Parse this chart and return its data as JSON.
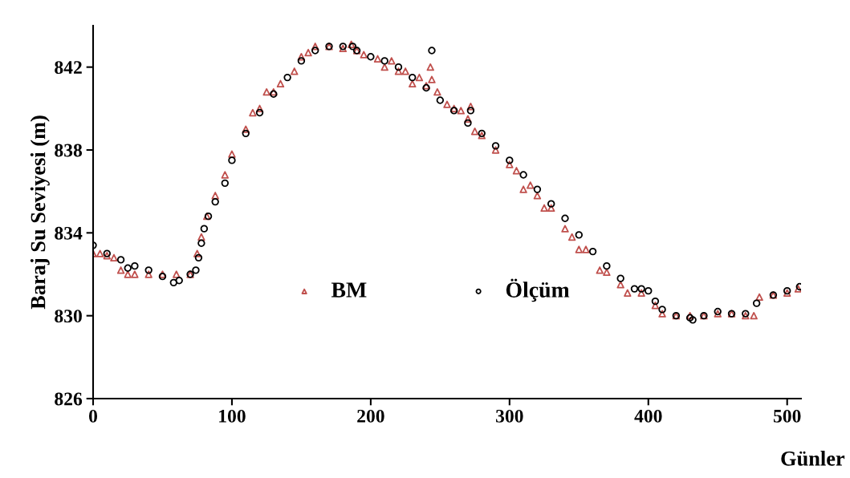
{
  "chart_data": {
    "type": "scatter",
    "xlabel": "Günler",
    "ylabel": "Baraj Su Seviyesi (m)",
    "xlim": [
      0,
      510
    ],
    "ylim": [
      826,
      844
    ],
    "xticks": [
      0,
      100,
      200,
      300,
      400,
      500
    ],
    "yticks": [
      826,
      830,
      834,
      838,
      842
    ],
    "grid": false,
    "legend": "center",
    "series": [
      {
        "name": "BM",
        "color": "#c0504d",
        "marker": "triangle",
        "x": [
          0,
          5,
          10,
          15,
          20,
          25,
          30,
          40,
          50,
          60,
          70,
          75,
          78,
          82,
          88,
          95,
          100,
          110,
          115,
          120,
          125,
          130,
          135,
          145,
          150,
          155,
          160,
          170,
          180,
          186,
          190,
          195,
          205,
          210,
          215,
          220,
          225,
          230,
          235,
          240,
          243,
          244,
          248,
          255,
          260,
          265,
          270,
          272,
          275,
          280,
          290,
          300,
          305,
          310,
          315,
          320,
          325,
          330,
          340,
          345,
          350,
          355,
          365,
          370,
          380,
          385,
          395,
          405,
          410,
          420,
          430,
          440,
          450,
          460,
          470,
          476,
          480,
          490,
          500,
          508
        ],
        "values": [
          833.0,
          833.0,
          832.9,
          832.8,
          832.2,
          832.0,
          832.0,
          832.0,
          832.0,
          832.0,
          832.0,
          833.0,
          833.8,
          834.8,
          835.8,
          836.8,
          837.8,
          839.0,
          839.8,
          840.0,
          840.8,
          840.8,
          841.2,
          841.8,
          842.5,
          842.7,
          843.0,
          843.0,
          842.9,
          843.1,
          842.8,
          842.6,
          842.4,
          842.0,
          842.3,
          841.8,
          841.8,
          841.2,
          841.5,
          841.1,
          842.0,
          841.4,
          840.8,
          840.2,
          840.0,
          839.9,
          839.5,
          840.1,
          838.9,
          838.7,
          838.0,
          837.3,
          837.0,
          836.1,
          836.3,
          835.8,
          835.2,
          835.2,
          834.2,
          833.8,
          833.2,
          833.2,
          832.2,
          832.1,
          831.5,
          831.1,
          831.1,
          830.5,
          830.1,
          830.0,
          830.0,
          830.0,
          830.1,
          830.1,
          830.0,
          830.0,
          830.9,
          831.0,
          831.1,
          831.3
        ]
      },
      {
        "name": "Ölçüm",
        "color": "#000000",
        "marker": "circle",
        "x": [
          0,
          10,
          20,
          25,
          30,
          40,
          50,
          58,
          62,
          70,
          74,
          76,
          78,
          80,
          83,
          88,
          95,
          100,
          110,
          120,
          130,
          140,
          150,
          160,
          170,
          180,
          187,
          190,
          200,
          210,
          220,
          230,
          240,
          244,
          250,
          260,
          270,
          272,
          280,
          290,
          300,
          310,
          320,
          330,
          340,
          350,
          360,
          370,
          380,
          390,
          395,
          400,
          405,
          410,
          420,
          430,
          432,
          440,
          450,
          460,
          470,
          478,
          490,
          500,
          509
        ],
        "values": [
          833.4,
          833.0,
          832.7,
          832.3,
          832.4,
          832.2,
          831.9,
          831.6,
          831.7,
          832.0,
          832.2,
          832.8,
          833.5,
          834.2,
          834.8,
          835.5,
          836.4,
          837.5,
          838.8,
          839.8,
          840.7,
          841.5,
          842.3,
          842.8,
          843.0,
          843.0,
          843.0,
          842.8,
          842.5,
          842.3,
          842.0,
          841.5,
          841.0,
          842.8,
          840.4,
          839.9,
          839.3,
          839.9,
          838.8,
          838.2,
          837.5,
          836.8,
          836.1,
          835.4,
          834.7,
          833.9,
          833.1,
          832.4,
          831.8,
          831.3,
          831.3,
          831.2,
          830.7,
          830.3,
          830.0,
          829.9,
          829.8,
          830.0,
          830.2,
          830.1,
          830.1,
          830.6,
          831.0,
          831.2,
          831.4
        ]
      }
    ]
  }
}
